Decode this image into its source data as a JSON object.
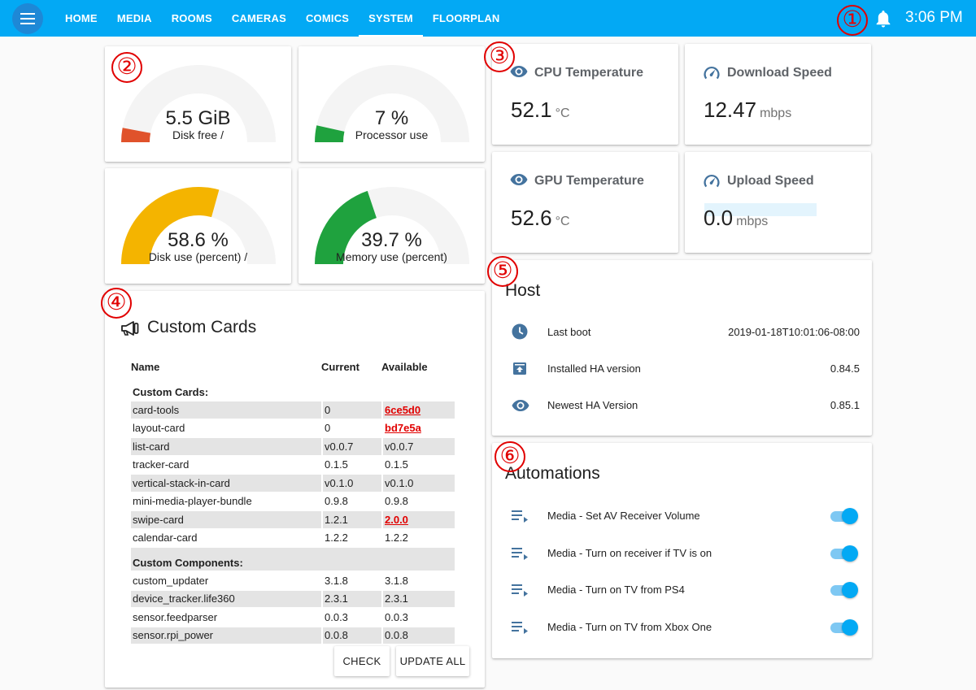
{
  "header": {
    "tabs": [
      "HOME",
      "MEDIA",
      "ROOMS",
      "CAMERAS",
      "COMICS",
      "SYSTEM",
      "FLOORPLAN"
    ],
    "active_tab": "SYSTEM",
    "time": "3:06 PM",
    "icons": [
      "menu-icon",
      "bell-icon"
    ]
  },
  "markers": [
    "①",
    "②",
    "③",
    "④",
    "⑤",
    "⑥"
  ],
  "gauges": [
    {
      "value": "5.5 GiB",
      "label": "Disk free /",
      "fraction": 0.06,
      "color": "#e0522b"
    },
    {
      "value": "7 %",
      "label": "Processor use",
      "fraction": 0.07,
      "color": "#1fa23e"
    },
    {
      "value": "58.6 %",
      "label": "Disk use (percent) /",
      "fraction": 0.586,
      "color": "#f4b400"
    },
    {
      "value": "39.7 %",
      "label": "Memory use (percent)",
      "fraction": 0.397,
      "color": "#1fa23e"
    }
  ],
  "sensors": [
    {
      "title": "CPU Temperature",
      "value": "52.1",
      "unit": "°C",
      "icon": "eye-icon"
    },
    {
      "title": "Download Speed",
      "value": "12.47",
      "unit": "mbps",
      "icon": "speedometer-icon"
    },
    {
      "title": "GPU Temperature",
      "value": "52.6",
      "unit": "°C",
      "icon": "eye-icon"
    },
    {
      "title": "Upload Speed",
      "value": "0.0",
      "unit": "mbps",
      "icon": "speedometer-icon"
    }
  ],
  "custom_cards": {
    "title": "Custom Cards",
    "headers": [
      "Name",
      "Current",
      "Available"
    ],
    "cards_section": "Custom Cards:",
    "cards": [
      {
        "name": "card-tools",
        "current": "0",
        "available": "6ce5d0",
        "update": true
      },
      {
        "name": "layout-card",
        "current": "0",
        "available": "bd7e5a",
        "update": true
      },
      {
        "name": "list-card",
        "current": "v0.0.7",
        "available": "v0.0.7",
        "update": false
      },
      {
        "name": "tracker-card",
        "current": "0.1.5",
        "available": "0.1.5",
        "update": false
      },
      {
        "name": "vertical-stack-in-card",
        "current": "v0.1.0",
        "available": "v0.1.0",
        "update": false
      },
      {
        "name": "mini-media-player-bundle",
        "current": "0.9.8",
        "available": "0.9.8",
        "update": false
      },
      {
        "name": "swipe-card",
        "current": "1.2.1",
        "available": "2.0.0",
        "update": true
      },
      {
        "name": "calendar-card",
        "current": "1.2.2",
        "available": "1.2.2",
        "update": false
      }
    ],
    "components_section": "Custom Components:",
    "components": [
      {
        "name": "custom_updater",
        "current": "3.1.8",
        "available": "3.1.8"
      },
      {
        "name": "device_tracker.life360",
        "current": "2.3.1",
        "available": "2.3.1"
      },
      {
        "name": "sensor.feedparser",
        "current": "0.0.3",
        "available": "0.0.3"
      },
      {
        "name": "sensor.rpi_power",
        "current": "0.0.8",
        "available": "0.0.8"
      }
    ],
    "buttons": {
      "check": "CHECK",
      "update_all": "UPDATE ALL"
    }
  },
  "host": {
    "title": "Host",
    "rows": [
      {
        "label": "Last boot",
        "value": "2019-01-18T10:01:06-08:00",
        "icon": "clock-icon"
      },
      {
        "label": "Installed HA version",
        "value": "0.84.5",
        "icon": "package-icon"
      },
      {
        "label": "Newest HA Version",
        "value": "0.85.1",
        "icon": "eye-icon"
      }
    ]
  },
  "automations": {
    "title": "Automations",
    "rows": [
      {
        "label": "Media - Set AV Receiver Volume",
        "on": true
      },
      {
        "label": "Media - Turn on receiver if TV is on",
        "on": true
      },
      {
        "label": "Media - Turn on TV from PS4",
        "on": true
      },
      {
        "label": "Media - Turn on TV from Xbox One",
        "on": true
      }
    ]
  }
}
